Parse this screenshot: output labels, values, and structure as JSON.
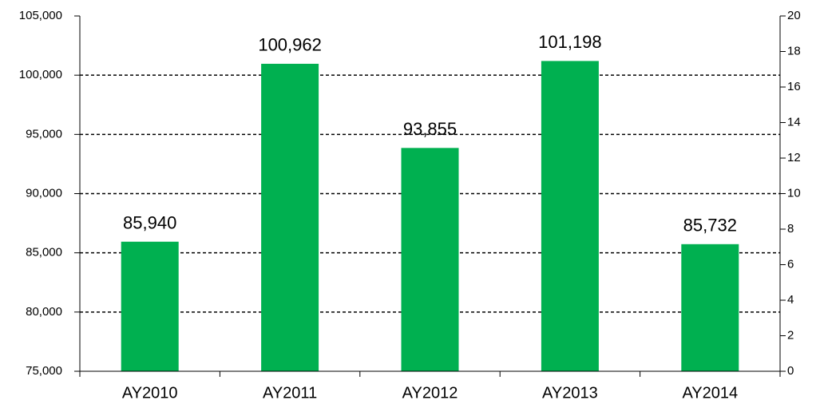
{
  "chart_data": {
    "type": "bar",
    "categories": [
      "AY2010",
      "AY2011",
      "AY2012",
      "AY2013",
      "AY2014"
    ],
    "values": [
      85940,
      100962,
      93855,
      101198,
      85732
    ],
    "value_labels": [
      "85,940",
      "100,962",
      "93,855",
      "101,198",
      "85,732"
    ],
    "color": "#00b050",
    "ylim": [
      75000,
      105000
    ],
    "yticks": [
      {
        "value": 75000,
        "label": "75,000"
      },
      {
        "value": 80000,
        "label": "80,000"
      },
      {
        "value": 85000,
        "label": "85,000"
      },
      {
        "value": 90000,
        "label": "90,000"
      },
      {
        "value": 95000,
        "label": "95,000"
      },
      {
        "value": 100000,
        "label": "100,000"
      },
      {
        "value": 105000,
        "label": "105,000"
      }
    ],
    "y2lim": [
      0,
      20
    ],
    "y2ticks": [
      0,
      2,
      4,
      6,
      8,
      10,
      12,
      14,
      16,
      18,
      20
    ],
    "grid": true
  }
}
